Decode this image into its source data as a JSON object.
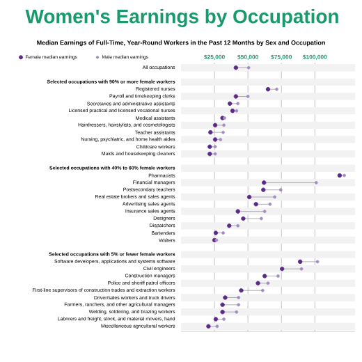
{
  "chart_data": {
    "type": "scatter",
    "orientation": "horizontal",
    "title": "Women's Earnings by Occupation",
    "subtitle": "Median Earnings of Full-Time, Year-Round Workers in the Past 12 Months by Sex and Occupation",
    "categories": [
      "All occupations",
      null,
      "Selected occupations with 90% or more female workers",
      "Registered nurses",
      "Payroll and timekeeping clerks",
      "Secretaries and administrative assistants",
      "Licensed practical and licensed vocational nurses",
      "Medical assistants",
      "Hairdressers, hairstylists, and cosmetologists",
      "Teacher assistants",
      "Nursing, psychiatric, and home health aides",
      "Childcare workers",
      "Maids and housekeeping cleaners",
      null,
      "Selected occupations with 40% to 60% female workers",
      "Pharmacists",
      "Financial managers",
      "Postsecondary teachers",
      "Real estate brokers and sales agents",
      "Advertising sales agents",
      "Insurance sales agents",
      "Designers",
      "Dispatchers",
      "Bartenders",
      "Waiters",
      null,
      "Selected occupations with 5% or fewer female workers",
      "Software developers, applications and systems software",
      "Civil engineers",
      "Construction managers",
      "Police and sheriff patrol officers",
      "First-line supervisors of construction trades and extraction workers",
      "Driver/sales workers and truck drivers",
      "Farmers, ranchers, and other agricultural managers",
      "Welding, soldering, and brazing workers",
      "Laborers and freight, stock, and material movers, hand",
      "Miscellaneous agricultural workers"
    ],
    "series": [
      {
        "name": "Female median earnings",
        "color": "#5b2a86",
        "values": [
          41000,
          null,
          null,
          65000,
          41000,
          36500,
          38500,
          31000,
          25500,
          22000,
          25500,
          21500,
          21500,
          null,
          null,
          118500,
          62000,
          61500,
          51000,
          56000,
          42500,
          46500,
          36000,
          26000,
          25000,
          null,
          null,
          89000,
          75500,
          62500,
          57500,
          45000,
          33000,
          31000,
          31000,
          26000,
          20500
        ]
      },
      {
        "name": "Male median earnings",
        "color": "#a58cc4",
        "values": [
          50500,
          null,
          null,
          71500,
          50000,
          42500,
          41500,
          32500,
          32000,
          31500,
          29500,
          25500,
          25500,
          null,
          null,
          122000,
          101000,
          74500,
          70000,
          66500,
          62500,
          60000,
          42500,
          31500,
          26500,
          null,
          null,
          102000,
          90000,
          72500,
          65000,
          61000,
          43000,
          43000,
          41500,
          32000,
          27000
        ]
      }
    ],
    "xlim": [
      0,
      130000
    ],
    "xticks": [
      {
        "value": 25000,
        "label": "$25,000"
      },
      {
        "value": 50000,
        "label": "$50,000"
      },
      {
        "value": 75000,
        "label": "$75,000"
      },
      {
        "value": 100000,
        "label": "$100,000"
      }
    ],
    "grid": "x",
    "legend": "top left",
    "marker": "circle"
  }
}
